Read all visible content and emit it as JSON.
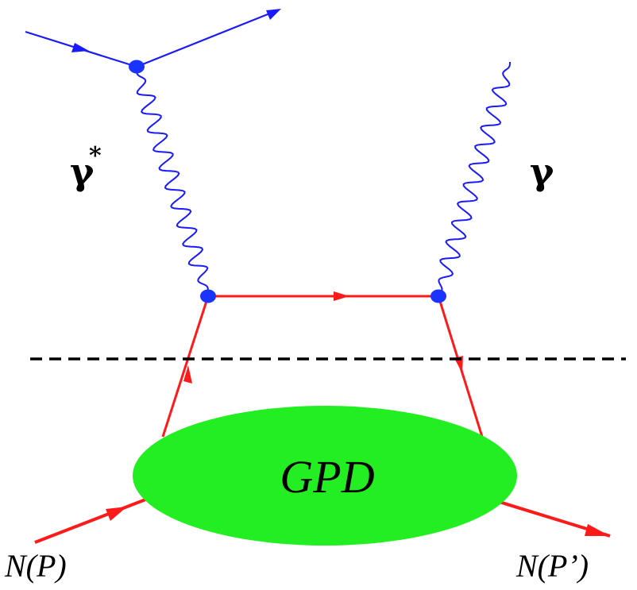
{
  "colors": {
    "electron": "#1a1aff",
    "photon": "#1a1aff",
    "quark": "#ff1a1a",
    "nucleon": "#ff1a1a",
    "blob": "#22ee22",
    "vertex": "#1a33ff",
    "cut": "#000000",
    "text": "#000000"
  },
  "labels": {
    "virtual_photon": "γ",
    "virtual_photon_sup": "*",
    "real_photon": "γ",
    "blob": "GPD",
    "incoming_nucleon": "N(P)",
    "outgoing_nucleon": "N(P’)"
  },
  "icons": {
    "vertex": "vertex-dot-icon",
    "arrow": "arrowhead-icon"
  }
}
